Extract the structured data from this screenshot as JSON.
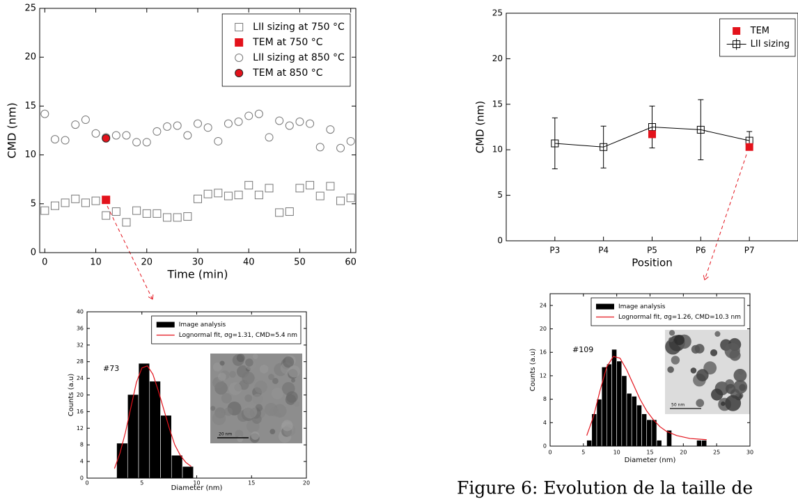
{
  "caption": "Figure 6: Evolution de la taille de",
  "chart_data": [
    {
      "type": "scatter",
      "xlabel": "Time (min)",
      "ylabel": "CMD (nm)",
      "xlim": [
        -1,
        61
      ],
      "xticks": [
        0,
        10,
        20,
        30,
        40,
        50,
        60
      ],
      "ylim": [
        0,
        25
      ],
      "yticks": [
        0,
        5,
        10,
        15,
        20,
        25
      ],
      "legend": "upper right",
      "series": [
        {
          "name": "LII sizing at 750 °C",
          "color": "#777777",
          "marker": "square",
          "filled": false,
          "x": [
            0,
            2,
            4,
            6,
            8,
            10,
            12,
            14,
            16,
            18,
            20,
            22,
            24,
            26,
            28,
            30,
            32,
            34,
            36,
            38,
            40,
            42,
            44,
            46,
            48,
            50,
            52,
            54,
            56,
            58,
            60
          ],
          "values": [
            4.3,
            4.8,
            5.1,
            5.5,
            5.1,
            5.3,
            3.8,
            4.2,
            3.1,
            4.3,
            4.0,
            4.0,
            3.6,
            3.6,
            3.7,
            5.5,
            6.0,
            6.1,
            5.8,
            5.9,
            6.9,
            5.9,
            6.6,
            4.1,
            4.2,
            6.6,
            6.9,
            5.8,
            6.8,
            5.3,
            5.6
          ]
        },
        {
          "name": "TEM at 750 °C",
          "color": "#e3121b",
          "marker": "square",
          "filled": true,
          "x": [
            12
          ],
          "values": [
            5.4
          ]
        },
        {
          "name": "LII sizing at 850 °C",
          "color": "#777777",
          "marker": "circle",
          "filled": false,
          "x": [
            0,
            2,
            4,
            6,
            8,
            10,
            12,
            14,
            16,
            18,
            20,
            22,
            24,
            26,
            28,
            30,
            32,
            34,
            36,
            38,
            40,
            42,
            44,
            46,
            48,
            50,
            52,
            54,
            56,
            58,
            60
          ],
          "values": [
            14.2,
            11.6,
            11.5,
            13.1,
            13.6,
            12.2,
            11.8,
            12.0,
            12.0,
            11.3,
            11.3,
            12.4,
            12.9,
            13.0,
            12.0,
            13.2,
            12.8,
            11.4,
            13.2,
            13.4,
            14.0,
            14.2,
            11.8,
            13.5,
            13.0,
            13.4,
            13.2,
            10.8,
            12.6,
            10.7,
            11.4
          ]
        },
        {
          "name": "TEM at 850 °C",
          "color": "#e3121b",
          "marker": "circle",
          "filled": true,
          "x": [
            12
          ],
          "values": [
            11.7
          ]
        }
      ]
    },
    {
      "type": "line",
      "xlabel": "Position",
      "ylabel": "CMD (nm)",
      "categories": [
        null,
        "P3",
        "P4",
        "P5",
        "P6",
        "P7",
        null
      ],
      "ylim": [
        0,
        25
      ],
      "yticks": [
        0,
        5,
        10,
        15,
        20,
        25
      ],
      "legend": "upper right",
      "series": [
        {
          "name": "TEM",
          "color": "#e3121b",
          "marker": "square",
          "filled": true,
          "line": false,
          "values": [
            null,
            null,
            null,
            11.7,
            null,
            10.3,
            null
          ]
        },
        {
          "name": "LII sizing",
          "color": "#000000",
          "marker": "square",
          "filled": false,
          "line": true,
          "values": [
            null,
            10.7,
            10.3,
            12.5,
            12.2,
            11.0,
            null
          ],
          "errors": [
            null,
            2.8,
            2.3,
            2.3,
            3.3,
            1.0,
            null
          ]
        }
      ]
    },
    {
      "type": "histogram",
      "xlabel": "Diameter (nm)",
      "ylabel": "Counts (a.u)",
      "annotation": "#73",
      "inset_scale_label": "20 nm",
      "xlim": [
        0,
        20
      ],
      "xticks": [
        0,
        5,
        10,
        15,
        20
      ],
      "ylim": [
        0,
        40
      ],
      "yticks": [
        0,
        4,
        8,
        12,
        16,
        20,
        24,
        28,
        32,
        36,
        40
      ],
      "legend": "upper right",
      "name": "Image analysis",
      "color": "#000000",
      "bins": [
        2.7,
        3.7,
        4.7,
        5.7,
        6.7,
        7.7,
        8.7,
        9.7
      ],
      "counts": [
        8.4,
        20.1,
        27.6,
        23.3,
        15.1,
        5.5,
        2.8
      ],
      "fit": {
        "name": "Lognormal fit, σg=1.31, CMD=5.4 nm",
        "color": "#e3121b",
        "x": [
          2.5,
          3,
          3.5,
          4,
          4.5,
          5,
          5.5,
          6,
          6.5,
          7,
          7.5,
          8,
          8.5,
          9,
          9.5
        ],
        "values": [
          2.3,
          6,
          11,
          17,
          23,
          26.5,
          27,
          25,
          21,
          16.5,
          12,
          8,
          5.5,
          3.8,
          2.8
        ]
      }
    },
    {
      "type": "histogram",
      "xlabel": "Diameter (nm)",
      "ylabel": "Counts (a.u)",
      "annotation": "#109",
      "inset_scale_label": "50 nm",
      "xlim": [
        0,
        30
      ],
      "xticks": [
        0,
        5,
        10,
        15,
        20,
        25,
        30
      ],
      "ylim": [
        0,
        26
      ],
      "yticks": [
        0,
        4,
        8,
        12,
        16,
        20,
        24
      ],
      "legend": "upper right",
      "name": "Image analysis",
      "color": "#000000",
      "bins": [
        5.5,
        6.25,
        7,
        7.75,
        8.5,
        9.25,
        10,
        10.75,
        11.5,
        12.25,
        13,
        13.75,
        14.5,
        15.25,
        16,
        16.75,
        17.5,
        18.25,
        19,
        19.75,
        20.5,
        21.25,
        22,
        22.75,
        23.5
      ],
      "counts": [
        1,
        5.5,
        8,
        13.5,
        14,
        16.5,
        14.5,
        12,
        9,
        8.5,
        7,
        5.5,
        4.5,
        4.5,
        1,
        0,
        2.7,
        0,
        0,
        0,
        0,
        0,
        1,
        1
      ],
      "fit": {
        "name": "Lognormal fit, σg=1.26, CMD=10.3 nm",
        "color": "#e3121b",
        "x": [
          5.5,
          6.5,
          7.5,
          8.5,
          9.5,
          10.5,
          11.5,
          12.5,
          13.5,
          14.5,
          15.5,
          16.5,
          17.5,
          19,
          21,
          23.5
        ],
        "values": [
          1.8,
          5,
          9.5,
          13.5,
          15.3,
          15,
          13,
          10.5,
          8,
          6,
          4.5,
          3.3,
          2.5,
          1.8,
          1.3,
          1.1
        ]
      }
    }
  ]
}
